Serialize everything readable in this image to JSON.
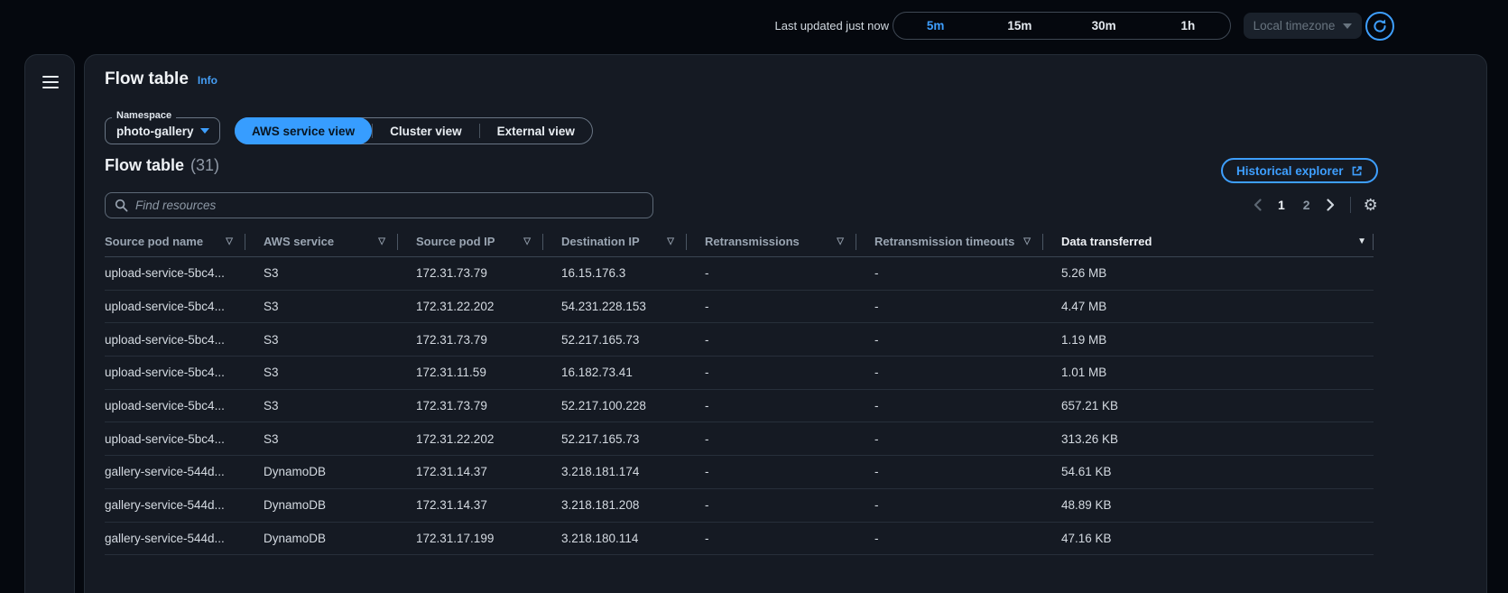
{
  "topbar": {
    "last_updated": "Last updated just now",
    "time_ranges": [
      "5m",
      "15m",
      "30m",
      "1h"
    ],
    "selected_time_range": "5m",
    "timezone_label": "Local timezone"
  },
  "panel": {
    "title": "Flow table",
    "info_label": "Info",
    "namespace_label": "Namespace",
    "namespace_value": "photo-gallery",
    "views": [
      "AWS service view",
      "Cluster view",
      "External view"
    ],
    "selected_view": "AWS service view",
    "section_title": "Flow table",
    "section_count": "(31)",
    "historical_explorer_label": "Historical explorer",
    "search_placeholder": "Find resources",
    "pagination": {
      "pages": [
        "1",
        "2"
      ],
      "current": "1"
    },
    "table": {
      "columns": [
        {
          "label": "Source pod name",
          "filter": true
        },
        {
          "label": "AWS service",
          "filter": true
        },
        {
          "label": "Source pod IP",
          "filter": true
        },
        {
          "label": "Destination IP",
          "filter": true
        },
        {
          "label": "Retransmissions",
          "filter": true
        },
        {
          "label": "Retransmission timeouts",
          "filter": true
        },
        {
          "label": "Data transferred",
          "filter": false,
          "sort": "desc"
        }
      ],
      "rows": [
        [
          "upload-service-5bc4...",
          "S3",
          "172.31.73.79",
          "16.15.176.3",
          "-",
          "-",
          "5.26 MB"
        ],
        [
          "upload-service-5bc4...",
          "S3",
          "172.31.22.202",
          "54.231.228.153",
          "-",
          "-",
          "4.47 MB"
        ],
        [
          "upload-service-5bc4...",
          "S3",
          "172.31.73.79",
          "52.217.165.73",
          "-",
          "-",
          "1.19 MB"
        ],
        [
          "upload-service-5bc4...",
          "S3",
          "172.31.11.59",
          "16.182.73.41",
          "-",
          "-",
          "1.01 MB"
        ],
        [
          "upload-service-5bc4...",
          "S3",
          "172.31.73.79",
          "52.217.100.228",
          "-",
          "-",
          "657.21 KB"
        ],
        [
          "upload-service-5bc4...",
          "S3",
          "172.31.22.202",
          "52.217.165.73",
          "-",
          "-",
          "313.26 KB"
        ],
        [
          "gallery-service-544d...",
          "DynamoDB",
          "172.31.14.37",
          "3.218.181.174",
          "-",
          "-",
          "54.61 KB"
        ],
        [
          "gallery-service-544d...",
          "DynamoDB",
          "172.31.14.37",
          "3.218.181.208",
          "-",
          "-",
          "48.89 KB"
        ],
        [
          "gallery-service-544d...",
          "DynamoDB",
          "172.31.17.199",
          "3.218.180.114",
          "-",
          "-",
          "47.16 KB"
        ]
      ]
    }
  },
  "icons": {
    "filter": "▽",
    "sort_desc": "▼",
    "gear": "⚙"
  },
  "colors": {
    "accent": "#3e9fff",
    "page_bg": "#05080e",
    "card_bg": "#151a23"
  }
}
